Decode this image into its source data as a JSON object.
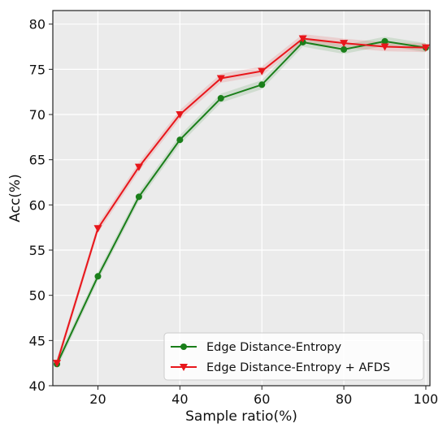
{
  "chart_data": {
    "type": "line",
    "xlabel": "Sample ratio(%)",
    "ylabel": "Acc(%)",
    "xlim": [
      9,
      101
    ],
    "ylim": [
      40,
      81.5
    ],
    "xticks": [
      20,
      40,
      60,
      80,
      100
    ],
    "yticks": [
      40,
      45,
      50,
      55,
      60,
      65,
      70,
      75,
      80
    ],
    "grid": true,
    "legend_position": "lower-right",
    "x": [
      10,
      20,
      30,
      40,
      50,
      60,
      70,
      80,
      90,
      100
    ],
    "series": [
      {
        "name": "Edge Distance-Entropy",
        "color": "#1a7f1a",
        "marker": "circle",
        "values": [
          42.4,
          52.1,
          60.9,
          67.2,
          71.8,
          73.3,
          78.0,
          77.2,
          78.1,
          77.4
        ],
        "band": 0.5
      },
      {
        "name": "Edge Distance-Entropy + AFDS",
        "color": "#e8161b",
        "marker": "triangle-down",
        "values": [
          42.5,
          57.4,
          64.2,
          70.0,
          74.0,
          74.8,
          78.4,
          77.9,
          77.5,
          77.4
        ],
        "band": 0.5
      }
    ]
  }
}
